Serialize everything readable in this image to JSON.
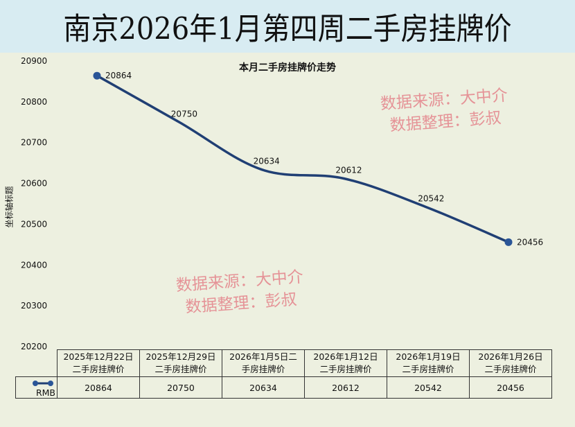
{
  "header": {
    "title": "南京2026年1月第四周二手房挂牌价"
  },
  "watermarks": [
    {
      "line1": "数据来源：大中介",
      "line2": "数据整理：彭叔"
    },
    {
      "line1": "数据来源：大中介",
      "line2": "数据整理：彭叔"
    }
  ],
  "chart_data": {
    "type": "line",
    "title": "本月二手房挂牌价走势",
    "ylabel": "坐标轴标题",
    "xlabel": "",
    "ylim": [
      20200,
      20900
    ],
    "yticks": [
      20200,
      20300,
      20400,
      20500,
      20600,
      20700,
      20800,
      20900
    ],
    "categories": [
      "2025年12月22日二手房挂牌价",
      "2025年12月29日二手房挂牌价",
      "2026年1月5日二手房挂牌价",
      "2026年1月12日二手房挂牌价",
      "2026年1月19日二手房挂牌价",
      "2026年1月26日二手房挂牌价"
    ],
    "category_lines": [
      [
        "2025年12月22日",
        "二手房挂牌价"
      ],
      [
        "2025年12月29日",
        "二手房挂牌价"
      ],
      [
        "2026年1月5日二",
        "手房挂牌价"
      ],
      [
        "2026年1月12日",
        "二手房挂牌价"
      ],
      [
        "2026年1月19日",
        "二手房挂牌价"
      ],
      [
        "2026年1月26日",
        "二手房挂牌价"
      ]
    ],
    "series": [
      {
        "name": "RMB",
        "values": [
          20864,
          20750,
          20634,
          20612,
          20542,
          20456
        ],
        "color": "#203f74"
      }
    ],
    "grid": false,
    "legend": "data-table"
  }
}
